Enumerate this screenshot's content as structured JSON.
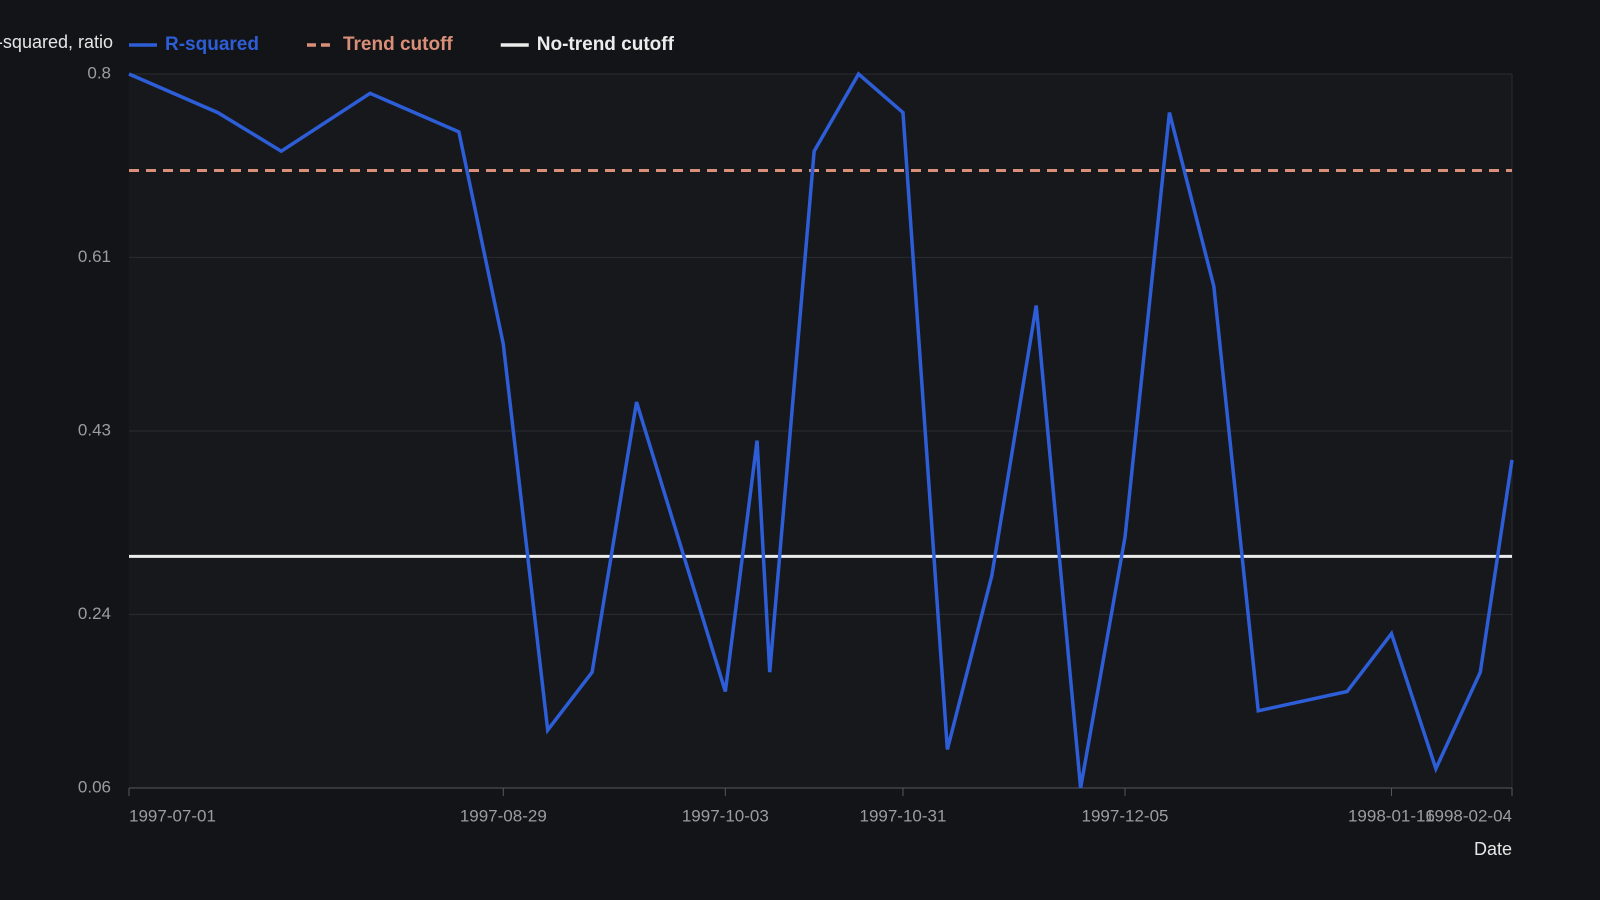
{
  "chart_data": {
    "type": "line",
    "y_label": "R-squared, ratio",
    "x_label": "Date",
    "x": [
      "1997-07-01",
      "1997-07-15",
      "1997-07-25",
      "1997-08-08",
      "1997-08-22",
      "1997-08-29",
      "1997-09-05",
      "1997-09-12",
      "1997-09-19",
      "1997-10-03",
      "1997-10-08",
      "1997-10-10",
      "1997-10-17",
      "1997-10-24",
      "1997-10-31",
      "1997-11-07",
      "1997-11-14",
      "1997-11-21",
      "1997-11-28",
      "1997-12-05",
      "1997-12-12",
      "1997-12-19",
      "1997-12-26",
      "1998-01-09",
      "1998-01-16",
      "1998-01-23",
      "1998-01-30",
      "1998-02-04"
    ],
    "series": [
      {
        "name": "R-squared",
        "color": "#2d5ed8",
        "values": [
          0.8,
          0.76,
          0.72,
          0.78,
          0.74,
          0.52,
          0.12,
          0.18,
          0.46,
          0.16,
          0.42,
          0.18,
          0.72,
          0.8,
          0.76,
          0.1,
          0.28,
          0.56,
          0.06,
          0.32,
          0.76,
          0.58,
          0.14,
          0.16,
          0.22,
          0.08,
          0.18,
          0.4
        ]
      }
    ],
    "reference_lines": [
      {
        "name": "Trend cutoff",
        "color": "#d98f78",
        "value": 0.7,
        "dashed": true
      },
      {
        "name": "No-trend cutoff",
        "color": "#ececec",
        "value": 0.3,
        "dashed": false
      }
    ],
    "xlim": [
      "1997-07-01",
      "1998-02-04"
    ],
    "xticks": [
      "1997-07-01",
      "1997-08-29",
      "1997-10-03",
      "1997-10-31",
      "1997-12-05",
      "1998-01-16",
      "1998-02-04"
    ],
    "ylim": [
      0.06,
      0.8
    ],
    "yticks": [
      0.06,
      0.24,
      0.43,
      0.61,
      0.8
    ],
    "grid": true
  }
}
